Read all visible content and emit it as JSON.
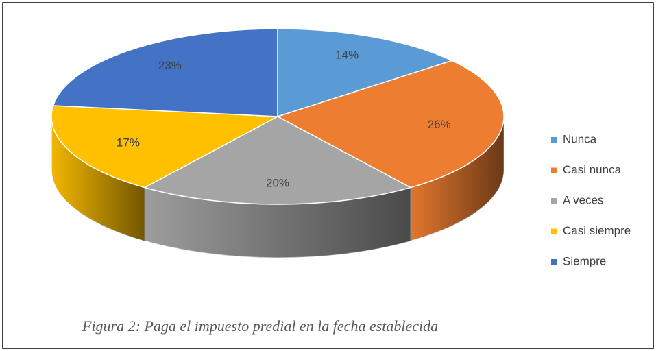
{
  "chart_data": {
    "type": "pie",
    "caption": "Figura 2: Paga el impuesto predial en la fecha establecida",
    "categories": [
      "Nunca",
      "Casi nunca",
      "A veces",
      "Casi siempre",
      "Siempre"
    ],
    "values": [
      14,
      26,
      20,
      17,
      23
    ],
    "value_labels": [
      "14%",
      "26%",
      "20%",
      "17%",
      "23%"
    ],
    "colors": [
      "#5b9bd5",
      "#ed7d31",
      "#a5a5a5",
      "#ffc000",
      "#4472c4"
    ],
    "legend": "right"
  }
}
